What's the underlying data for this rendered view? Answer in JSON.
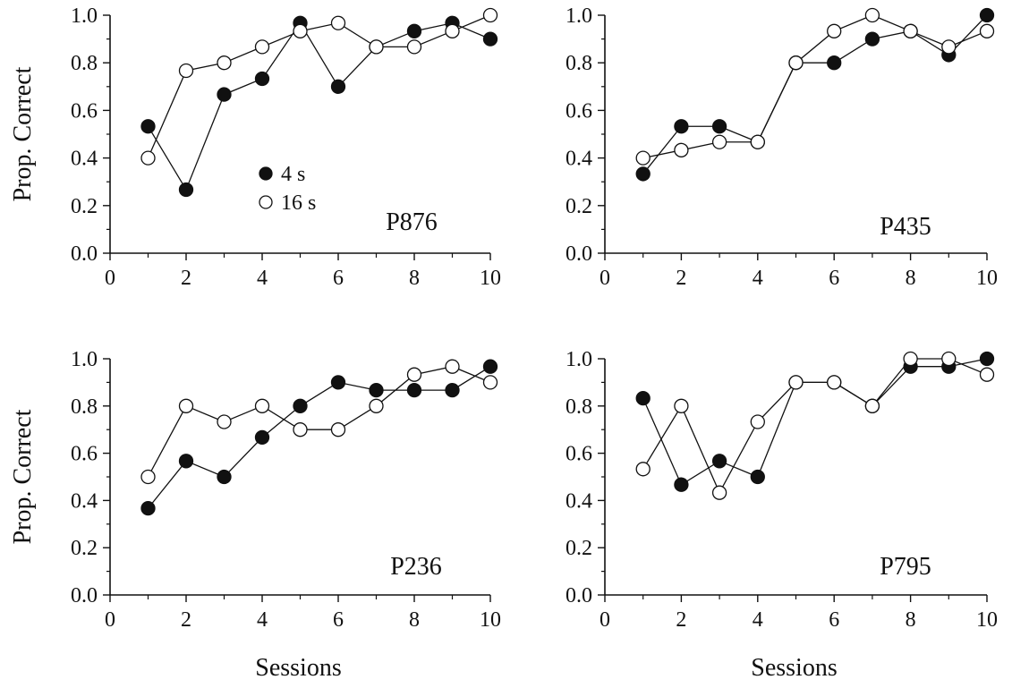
{
  "chart_data": [
    {
      "type": "line",
      "panel_label": "P876",
      "ylabel": "Prop. Correct",
      "xlabel": "",
      "xlim": [
        0,
        10
      ],
      "ylim": [
        0,
        1
      ],
      "xticks": [
        "0",
        "2",
        "4",
        "6",
        "8",
        "10"
      ],
      "yticks": [
        "0.0",
        "0.2",
        "0.4",
        "0.6",
        "0.8",
        "1.0"
      ],
      "legend": {
        "placement": "center",
        "entries": [
          "4 s",
          "16 s"
        ]
      },
      "series": [
        {
          "name": "4 s",
          "marker": "filled-circle",
          "x": [
            1,
            2,
            3,
            4,
            5,
            6,
            7,
            8,
            9,
            10
          ],
          "y": [
            0.533,
            0.267,
            0.667,
            0.733,
            0.967,
            0.7,
            0.867,
            0.933,
            0.967,
            0.9
          ]
        },
        {
          "name": "16 s",
          "marker": "open-circle",
          "x": [
            1,
            2,
            3,
            4,
            5,
            6,
            7,
            8,
            9,
            10
          ],
          "y": [
            0.4,
            0.767,
            0.8,
            0.867,
            0.933,
            0.967,
            0.867,
            0.867,
            0.933,
            1.0
          ]
        }
      ]
    },
    {
      "type": "line",
      "panel_label": "P435",
      "ylabel": "",
      "xlabel": "",
      "xlim": [
        0,
        10
      ],
      "ylim": [
        0,
        1
      ],
      "xticks": [
        "0",
        "2",
        "4",
        "6",
        "8",
        "10"
      ],
      "yticks": [
        "0.0",
        "0.2",
        "0.4",
        "0.6",
        "0.8",
        "1.0"
      ],
      "series": [
        {
          "name": "4 s",
          "marker": "filled-circle",
          "x": [
            1,
            2,
            3,
            4,
            5,
            6,
            7,
            8,
            9,
            10
          ],
          "y": [
            0.333,
            0.533,
            0.533,
            0.467,
            0.8,
            0.8,
            0.9,
            0.933,
            0.833,
            1.0
          ]
        },
        {
          "name": "16 s",
          "marker": "open-circle",
          "x": [
            1,
            2,
            3,
            4,
            5,
            6,
            7,
            8,
            9,
            10
          ],
          "y": [
            0.4,
            0.433,
            0.467,
            0.467,
            0.8,
            0.933,
            1.0,
            0.933,
            0.867,
            0.933
          ]
        }
      ]
    },
    {
      "type": "line",
      "panel_label": "P236",
      "ylabel": "Prop. Correct",
      "xlabel": "Sessions",
      "xlim": [
        0,
        10
      ],
      "ylim": [
        0,
        1
      ],
      "xticks": [
        "0",
        "2",
        "4",
        "6",
        "8",
        "10"
      ],
      "yticks": [
        "0.0",
        "0.2",
        "0.4",
        "0.6",
        "0.8",
        "1.0"
      ],
      "series": [
        {
          "name": "4 s",
          "marker": "filled-circle",
          "x": [
            1,
            2,
            3,
            4,
            5,
            6,
            7,
            8,
            9,
            10
          ],
          "y": [
            0.367,
            0.567,
            0.5,
            0.667,
            0.8,
            0.9,
            0.867,
            0.867,
            0.867,
            0.967
          ]
        },
        {
          "name": "16 s",
          "marker": "open-circle",
          "x": [
            1,
            2,
            3,
            4,
            5,
            6,
            7,
            8,
            9,
            10
          ],
          "y": [
            0.5,
            0.8,
            0.733,
            0.8,
            0.7,
            0.7,
            0.8,
            0.933,
            0.967,
            0.9
          ]
        }
      ]
    },
    {
      "type": "line",
      "panel_label": "P795",
      "ylabel": "",
      "xlabel": "Sessions",
      "xlim": [
        0,
        10
      ],
      "ylim": [
        0,
        1
      ],
      "xticks": [
        "0",
        "2",
        "4",
        "6",
        "8",
        "10"
      ],
      "yticks": [
        "0.0",
        "0.2",
        "0.4",
        "0.6",
        "0.8",
        "1.0"
      ],
      "series": [
        {
          "name": "4 s",
          "marker": "filled-circle",
          "x": [
            1,
            2,
            3,
            4,
            5,
            6,
            7,
            8,
            9,
            10
          ],
          "y": [
            0.833,
            0.467,
            0.567,
            0.5,
            0.9,
            0.9,
            0.8,
            0.967,
            0.967,
            1.0
          ]
        },
        {
          "name": "16 s",
          "marker": "open-circle",
          "x": [
            1,
            2,
            3,
            4,
            5,
            6,
            7,
            8,
            9,
            10
          ],
          "y": [
            0.533,
            0.8,
            0.433,
            0.733,
            0.9,
            0.9,
            0.8,
            1.0,
            1.0,
            0.933
          ]
        }
      ]
    }
  ],
  "colors": {
    "filled_marker": "#111111",
    "open_marker": "#ffffff",
    "line": "#111111",
    "axis": "#111111"
  }
}
